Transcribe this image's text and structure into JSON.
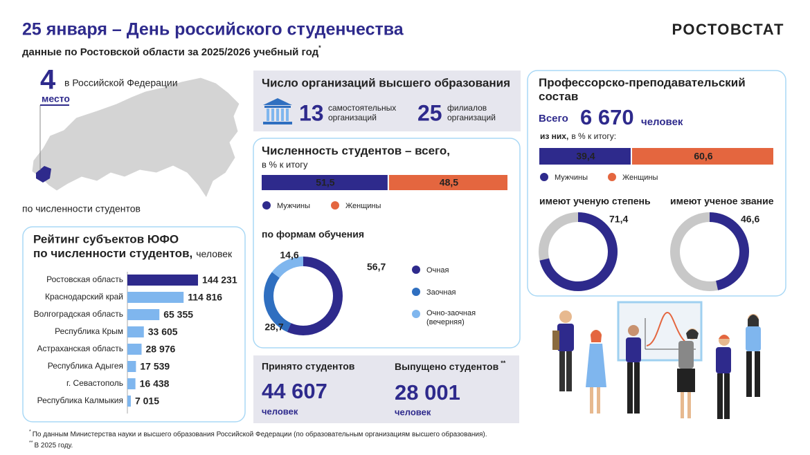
{
  "header": {
    "title": "25 января – День российского студенчества",
    "subtitle": "данные по Ростовской области за 2025/2026 учебный год",
    "subtitle_mark": "*",
    "brand": "РОСТОВСТАТ"
  },
  "rank": {
    "value": 4,
    "note": "в Российской Федерации",
    "unit": "место",
    "caption": "по численности студентов"
  },
  "organizations": {
    "title": "Число организаций высшего образования",
    "items": [
      {
        "value": 13,
        "label": "самостоятельных организаций"
      },
      {
        "value": 25,
        "label": "филиалов организаций"
      }
    ]
  },
  "students": {
    "title": "Численность студентов – всего,",
    "subtitle": "в % к итогу",
    "gender": [
      {
        "name": "Мужчины",
        "value": 51.5,
        "label": "51,5",
        "color": "#2e2a8c"
      },
      {
        "name": "Женщины",
        "value": 48.5,
        "label": "48,5",
        "color": "#e4663f"
      }
    ],
    "forms_title": "по формам обучения",
    "forms": [
      {
        "name": "Очная",
        "value": 56.7,
        "label": "56,7",
        "color": "#2e2a8c"
      },
      {
        "name": "Заочная",
        "value": 28.7,
        "label": "28,7",
        "color": "#2f6fc0"
      },
      {
        "name": "Очно-заочная (вечерняя)",
        "value": 14.6,
        "label": "14,6",
        "color": "#7fb6ee"
      }
    ]
  },
  "staff": {
    "title": "Профессорско-преподавательский состав",
    "total_label": "Всего",
    "total": "6 670",
    "unit": "человек",
    "share_note_bold": "из них,",
    "share_note": "в % к итогу:",
    "gender": [
      {
        "name": "Мужчины",
        "value": 39.4,
        "label": "39,4",
        "color": "#2e2a8c"
      },
      {
        "name": "Женщины",
        "value": 60.6,
        "label": "60,6",
        "color": "#e4663f"
      }
    ],
    "ring_color": "#2e2a8c",
    "ring_background": "#c8c8c8",
    "rings": [
      {
        "title": "имеют ученую степень",
        "value": 71.4,
        "label": "71,4"
      },
      {
        "title": "имеют ученое звание",
        "value": 46.6,
        "label": "46,6"
      }
    ]
  },
  "rating": {
    "title": "Рейтинг субъектов ЮФО",
    "title2": "по численности студентов,",
    "unit": "человек",
    "highlight_color": "#2e2a8c",
    "color": "#7fb6ee",
    "rows": [
      {
        "name": "Ростовская область",
        "value": 144231,
        "label": "144 231"
      },
      {
        "name": "Краснодарский край",
        "value": 114816,
        "label": "114 816"
      },
      {
        "name": "Волгоградская область",
        "value": 65355,
        "label": "65 355"
      },
      {
        "name": "Республика Крым",
        "value": 33605,
        "label": "33 605"
      },
      {
        "name": "Астраханская область",
        "value": 28976,
        "label": "28 976"
      },
      {
        "name": "Республика Адыгея",
        "value": 17539,
        "label": "17 539"
      },
      {
        "name": "г. Севастополь",
        "value": 16438,
        "label": "16 438"
      },
      {
        "name": "Республика Калмыкия",
        "value": 7015,
        "label": "7 015"
      }
    ]
  },
  "flows": [
    {
      "title": "Принято студентов",
      "value": "44 607",
      "unit": "человек"
    },
    {
      "title": "Выпущено студентов",
      "mark": "**",
      "value": "28 001",
      "unit": "человек"
    }
  ],
  "footnotes": [
    {
      "mark": "*",
      "text": "По данным Министерства науки и высшего образования Российской Федерации (по образовательным организациям высшего образования)."
    },
    {
      "mark": "**",
      "text": "В 2025 году."
    }
  ]
}
